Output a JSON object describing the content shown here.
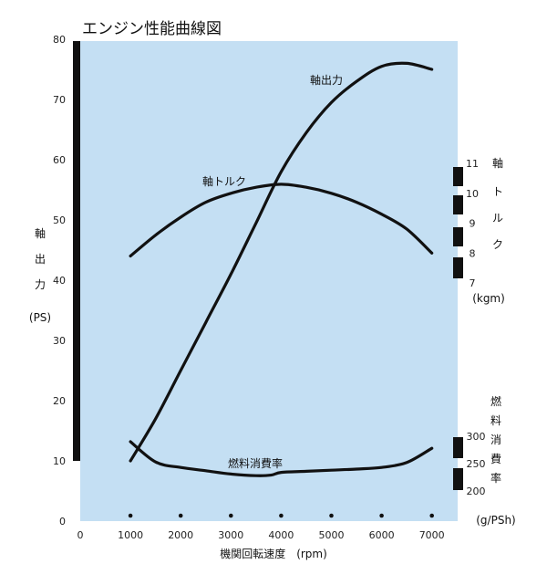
{
  "chart_data": {
    "type": "line",
    "title": "エンジン性能曲線図",
    "xlabel": "機関回転速度　(rpm)",
    "x_ticks": [
      "0",
      "1000",
      "2000",
      "3000",
      "4000",
      "5000",
      "6000",
      "7000"
    ],
    "xlim": [
      0,
      7500
    ],
    "left_axis": {
      "label_chars": [
        "軸",
        "出",
        "力"
      ],
      "unit": "(PS)",
      "ylim": [
        0,
        80
      ],
      "ticks": [
        "0",
        "10",
        "20",
        "30",
        "40",
        "50",
        "60",
        "70",
        "80"
      ]
    },
    "torque_axis": {
      "label_chars": [
        "軸",
        "ト",
        "ル",
        "ク"
      ],
      "unit": "(kgm)",
      "range": [
        7,
        11
      ],
      "ticks": [
        "7",
        "8",
        "9",
        "10",
        "11"
      ]
    },
    "fuel_axis": {
      "label_chars": [
        "燃",
        "料",
        "消",
        "費",
        "率"
      ],
      "unit": "(g/PSh)",
      "range": [
        200,
        300
      ],
      "ticks": [
        "200",
        "250",
        "300"
      ]
    },
    "series": [
      {
        "name": "軸出力",
        "axis": "left",
        "x": [
          1000,
          1500,
          2000,
          2500,
          3000,
          3500,
          4000,
          4500,
          5000,
          5500,
          6000,
          6500,
          7000
        ],
        "y": [
          10,
          17,
          25,
          33,
          41,
          49.5,
          58,
          64.5,
          69.5,
          73,
          75.5,
          76,
          75
        ]
      },
      {
        "name": "軸トルク",
        "axis": "torque",
        "x": [
          1000,
          1500,
          2000,
          2500,
          3000,
          3500,
          4000,
          4500,
          5000,
          5500,
          6000,
          6500,
          7000
        ],
        "y": [
          7.9,
          8.6,
          9.2,
          9.7,
          10.0,
          10.2,
          10.3,
          10.2,
          10.0,
          9.7,
          9.3,
          8.8,
          8.0
        ]
      },
      {
        "name": "燃料消費率",
        "axis": "fuel",
        "x": [
          1000,
          1500,
          2000,
          2500,
          3000,
          3500,
          3800,
          4000,
          4500,
          5000,
          5500,
          6000,
          6500,
          7000
        ],
        "y": [
          290,
          253,
          243,
          237,
          231,
          228,
          229,
          234,
          236,
          238,
          240,
          243,
          252,
          278
        ]
      }
    ]
  }
}
